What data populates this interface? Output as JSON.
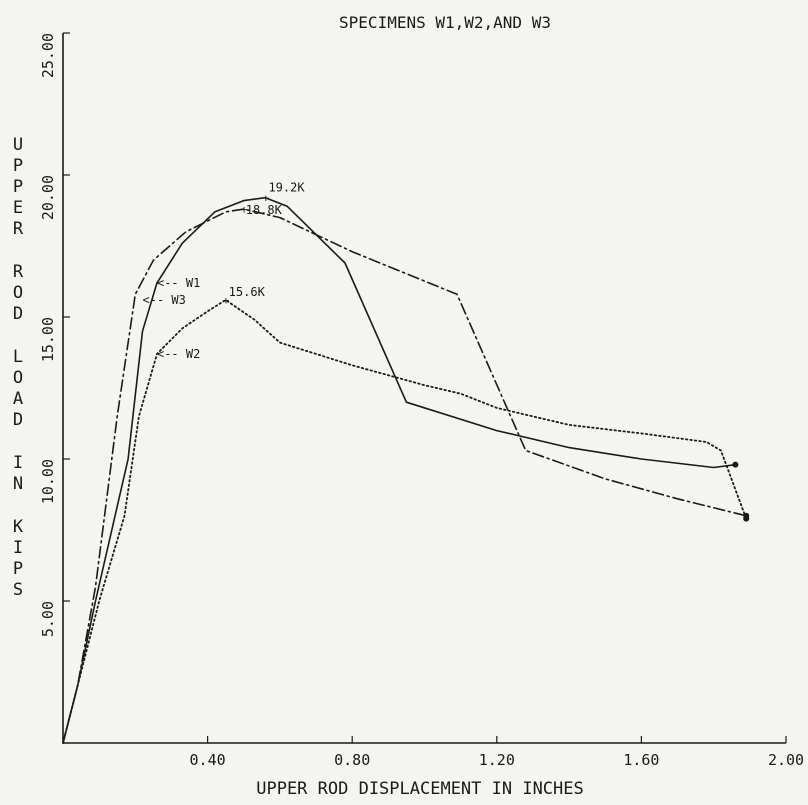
{
  "chart_data": {
    "type": "line",
    "title": "SPECIMENS W1,W2,AND W3",
    "xlabel": "UPPER ROD DISPLACEMENT IN INCHES",
    "ylabel": "UPPER ROD LOAD IN KIPS",
    "xlim": [
      0,
      2.0
    ],
    "ylim": [
      0,
      25.0
    ],
    "xticks": [
      "0.40",
      "0.80",
      "1.20",
      "1.60",
      "2.00"
    ],
    "yticks": [
      "5.00",
      "10.00",
      "15.00",
      "20.00",
      "25.00"
    ],
    "grid": false,
    "series": [
      {
        "name": "W1",
        "style": "solid",
        "points": [
          [
            0,
            0
          ],
          [
            0.04,
            2.0
          ],
          [
            0.09,
            5.0
          ],
          [
            0.18,
            10.0
          ],
          [
            0.22,
            14.5
          ],
          [
            0.26,
            16.2
          ],
          [
            0.33,
            17.6
          ],
          [
            0.42,
            18.7
          ],
          [
            0.5,
            19.1
          ],
          [
            0.56,
            19.2
          ],
          [
            0.62,
            18.9
          ],
          [
            0.78,
            16.9
          ],
          [
            0.95,
            12.0
          ],
          [
            1.2,
            11.0
          ],
          [
            1.4,
            10.4
          ],
          [
            1.6,
            10.0
          ],
          [
            1.8,
            9.7
          ],
          [
            1.86,
            9.8
          ]
        ]
      },
      {
        "name": "W2",
        "style": "dotted",
        "points": [
          [
            0,
            0
          ],
          [
            0.04,
            2.0
          ],
          [
            0.1,
            5.0
          ],
          [
            0.17,
            8.0
          ],
          [
            0.21,
            11.5
          ],
          [
            0.26,
            13.7
          ],
          [
            0.33,
            14.6
          ],
          [
            0.4,
            15.2
          ],
          [
            0.45,
            15.6
          ],
          [
            0.53,
            14.9
          ],
          [
            0.6,
            14.1
          ],
          [
            0.8,
            13.3
          ],
          [
            1.0,
            12.6
          ],
          [
            1.1,
            12.3
          ],
          [
            1.2,
            11.8
          ],
          [
            1.4,
            11.2
          ],
          [
            1.6,
            10.9
          ],
          [
            1.78,
            10.6
          ],
          [
            1.82,
            10.3
          ],
          [
            1.89,
            7.9
          ]
        ]
      },
      {
        "name": "W3",
        "style": "dashdot",
        "points": [
          [
            0,
            0
          ],
          [
            0.04,
            2.0
          ],
          [
            0.09,
            5.5
          ],
          [
            0.15,
            11.5
          ],
          [
            0.2,
            15.8
          ],
          [
            0.25,
            17.0
          ],
          [
            0.34,
            18.0
          ],
          [
            0.45,
            18.7
          ],
          [
            0.5,
            18.8
          ],
          [
            0.6,
            18.5
          ],
          [
            0.8,
            17.3
          ],
          [
            1.09,
            15.8
          ],
          [
            1.28,
            10.3
          ],
          [
            1.5,
            9.3
          ],
          [
            1.7,
            8.6
          ],
          [
            1.89,
            8.0
          ]
        ]
      }
    ],
    "annotations": [
      {
        "text": "19.2K",
        "x": 0.56,
        "y": 19.2
      },
      {
        "text": "18.8K",
        "x": 0.5,
        "y": 18.8
      },
      {
        "text": "15.6K",
        "x": 0.45,
        "y": 15.6
      },
      {
        "text": "<-- W1",
        "x": 0.26,
        "y": 16.2
      },
      {
        "text": "<-- W3",
        "x": 0.22,
        "y": 15.6
      },
      {
        "text": "<-- W2",
        "x": 0.26,
        "y": 13.7
      }
    ]
  }
}
